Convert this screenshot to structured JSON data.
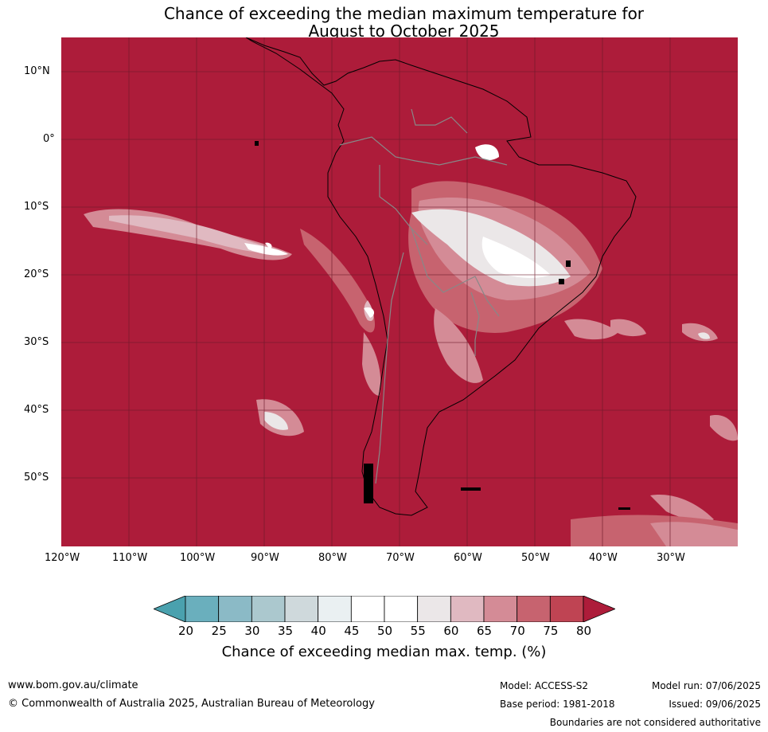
{
  "title_line1": "Chance of exceeding the median maximum temperature for",
  "title_line2": "August to October 2025",
  "lat_labels": [
    "10°N",
    "0°",
    "10°S",
    "20°S",
    "30°S",
    "40°S",
    "50°S"
  ],
  "lon_labels": [
    "120°W",
    "110°W",
    "100°W",
    "90°W",
    "80°W",
    "70°W",
    "60°W",
    "50°W",
    "40°W",
    "30°W"
  ],
  "colorbar": {
    "ticks": [
      "20",
      "25",
      "30",
      "35",
      "40",
      "45",
      "50",
      "55",
      "60",
      "65",
      "70",
      "75",
      "80"
    ],
    "colors": [
      "#4aa1ae",
      "#6aafbd",
      "#8bbac6",
      "#abc8ce",
      "#cfd9dc",
      "#eaf0f2",
      "#ffffff",
      "#ffffff",
      "#ebe7e8",
      "#e0b9c1",
      "#d48b96",
      "#c7636f",
      "#bf4453",
      "#ad1c3a"
    ],
    "title": "Chance of exceeding median max. temp. (%)"
  },
  "footer": {
    "url": "www.bom.gov.au/climate",
    "copyright": "© Commonwealth of Australia 2025, Australian Bureau of Meteorology",
    "model": "Model: ACCESS-S2",
    "base_period": "Base period: 1981-2018",
    "model_run": "Model run: 07/06/2025",
    "issued": "Issued: 09/06/2025",
    "disclaimer": "Boundaries are not considered authoritative"
  }
}
